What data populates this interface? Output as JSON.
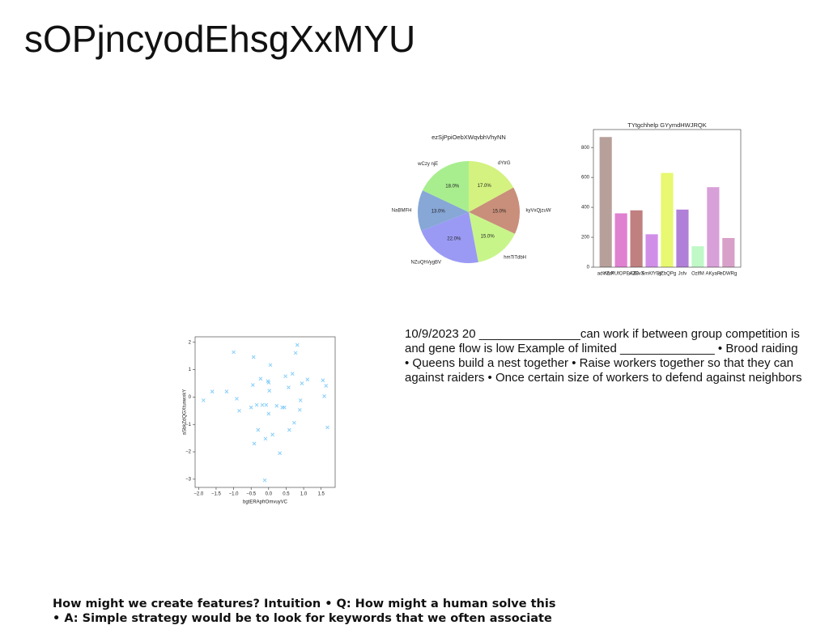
{
  "title": "sOPjncyodEhsgXxMYU",
  "body_lines": [
    "10/9/2023 20 _______________can work if between group competition is",
    "and gene flow is low Example of limited ______________ • Brood raiding",
    "• Queens build a nest together • Raise workers together so that they can",
    "against raiders • Once certain size of workers to defend against neighbors"
  ],
  "footer_lines": [
    "How might we create features? Intuition • Q: How might a human solve this",
    "• A: Simple strategy would be to look for keywords that we often associate"
  ],
  "chart_data": [
    {
      "type": "pie",
      "title": "ezSjPpiOebXWqvbhVhyNN",
      "categories": [
        "dYtrG",
        "kyVxQjzuW",
        "hmTiTdbH",
        "NZuQhVygBV",
        "NaBMFH",
        "wCzy njE"
      ],
      "values": [
        17.0,
        15.0,
        15.0,
        22.0,
        13.0,
        18.0
      ],
      "value_labels": [
        "17.0%",
        "15.0%",
        "15.0%",
        "22.0%",
        "13.0%",
        "18.0%"
      ],
      "colors": [
        "#d4f27f",
        "#c98f7a",
        "#c8f58a",
        "#9a9af5",
        "#87a7d6",
        "#a8ee8e"
      ]
    },
    {
      "type": "bar",
      "title": "TYtgchhelp GYymdHWJRQK",
      "categories": [
        "advVuX",
        "YZrPUfOPEAZB",
        "xOCvX",
        "SmKfYEjt",
        "aZbQPg",
        "Jsfv",
        "OzlfM",
        "AKyaR",
        "eDWRg"
      ],
      "values": [
        870,
        360,
        380,
        220,
        630,
        385,
        140,
        535,
        195
      ],
      "colors": [
        "#b8a09a",
        "#e080d0",
        "#c08080",
        "#d08ee8",
        "#e8f870",
        "#b080d8",
        "#c0f8c8",
        "#d8a0d8",
        "#d8a0c8"
      ],
      "ylim": [
        0,
        920
      ],
      "yticks": [
        0,
        200,
        400,
        600,
        800
      ]
    },
    {
      "type": "scatter",
      "xlabel": "bgtERApfrOmvuyVC",
      "ylabel": "aSbkZdQGXtunwxkY",
      "color": "#87cefa",
      "x": [
        -1.86,
        -1.61,
        -1.2,
        -1.0,
        -0.91,
        -0.84,
        -0.5,
        -0.45,
        -0.43,
        -0.41,
        -0.34,
        -0.3,
        -0.23,
        -0.18,
        -0.09,
        -0.07,
        -0.02,
        0,
        0,
        0.02,
        0.05,
        0.11,
        0.23,
        0.32,
        0.39,
        0.45,
        0.48,
        -0.11,
        0.57,
        0.59,
        0.68,
        0.73,
        0.77,
        0.82,
        0.89,
        0.91,
        0.95,
        1.11,
        1.55,
        1.59,
        1.64,
        1.68
      ],
      "values": [
        -0.12,
        0.2,
        0.2,
        1.64,
        -0.06,
        -0.5,
        -0.38,
        0.44,
        1.46,
        -1.7,
        -0.29,
        -1.2,
        0.67,
        -0.29,
        -1.52,
        -0.29,
        0.58,
        0.53,
        -0.61,
        0.23,
        1.17,
        -1.37,
        -0.32,
        -2.05,
        -0.38,
        -0.38,
        0.76,
        -3.04,
        0.35,
        -1.2,
        0.85,
        -0.94,
        1.61,
        1.9,
        -0.47,
        -0.12,
        0.5,
        0.64,
        0.61,
        0.03,
        0.41,
        -1.11
      ],
      "xlim": [
        -2.1,
        1.9
      ],
      "xticks": [
        {
          "value": -2,
          "label": "−2.0"
        },
        {
          "value": -1.5,
          "label": "−1.5"
        },
        {
          "value": -1,
          "label": "−1.0"
        },
        {
          "value": -0.5,
          "label": "−0.5"
        },
        {
          "value": 0,
          "label": "0.0"
        },
        0.5,
        {
          "value": 1,
          "label": "1.0"
        },
        1.5
      ],
      "ylim": [
        -3.3,
        2.2
      ],
      "yticks": [
        {
          "value": -3,
          "label": "−3"
        },
        {
          "value": -2,
          "label": "−2"
        },
        {
          "value": -1,
          "label": "−1"
        },
        0,
        1,
        2
      ]
    }
  ]
}
